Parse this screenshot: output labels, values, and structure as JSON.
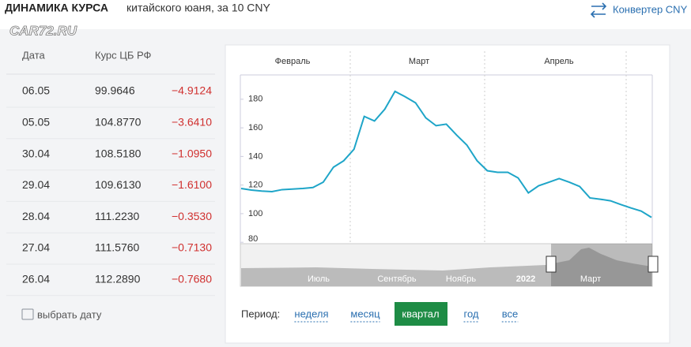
{
  "header": {
    "title_bold": "ДИНАМИКА КУРСА",
    "title_rest": "китайского юаня, за 10 CNY",
    "converter": "Конвертер CNY",
    "watermark": "CAR72.RU"
  },
  "table": {
    "columns": [
      "Дата",
      "Курс ЦБ РФ"
    ],
    "rows": [
      [
        "06.05",
        "99.9646",
        "−4.9124"
      ],
      [
        "05.05",
        "104.8770",
        "−3.6410"
      ],
      [
        "30.04",
        "108.5180",
        "−1.0950"
      ],
      [
        "29.04",
        "109.6130",
        "−1.6100"
      ],
      [
        "28.04",
        "111.2230",
        "−0.3530"
      ],
      [
        "27.04",
        "111.5760",
        "−0.7130"
      ],
      [
        "26.04",
        "112.2890",
        "−0.7680"
      ]
    ],
    "pick_date": "выбрать дату"
  },
  "chart": {
    "type": "line",
    "months": [
      "Февраль",
      "Март",
      "Апрель"
    ],
    "color": "#1ea5c8",
    "ylim": [
      79,
      197
    ],
    "yticks": [
      80,
      100,
      120,
      140,
      160,
      180
    ],
    "values": [
      117.6,
      116.5,
      115.8,
      115.4,
      116.8,
      117.2,
      117.6,
      118.3,
      122,
      132.5,
      137,
      145,
      168,
      164.8,
      173,
      185.5,
      181.7,
      177.5,
      167,
      161.5,
      162.6,
      155,
      148,
      137,
      130,
      128.9,
      128.9,
      125,
      114.5,
      119.5,
      122,
      124.5,
      122,
      119,
      111,
      110.1,
      109,
      106.4,
      104,
      101.8,
      97.4
    ]
  },
  "navigator": {
    "labels": [
      "Июль",
      "Сентябрь",
      "Ноябрь",
      "2022",
      "Март"
    ]
  },
  "period": {
    "label": "Период:",
    "options": [
      "неделя",
      "месяц",
      "квартал",
      "год",
      "все"
    ],
    "active": "квартал"
  }
}
